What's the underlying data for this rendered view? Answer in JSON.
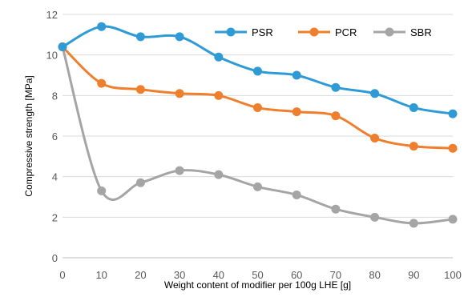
{
  "chart_data": {
    "type": "line",
    "title": "",
    "xlabel": "Weight content of modifier per 100g LHE [g]",
    "ylabel": "Compressive strength [MPa]",
    "xlim": [
      0,
      100
    ],
    "ylim": [
      0,
      12
    ],
    "x": [
      0,
      10,
      20,
      30,
      40,
      50,
      60,
      70,
      80,
      90,
      100
    ],
    "x_ticks": [
      "0",
      "10",
      "20",
      "30",
      "40",
      "50",
      "60",
      "70",
      "80",
      "90",
      "100"
    ],
    "y_ticks": [
      "0",
      "2",
      "4",
      "6",
      "8",
      "10",
      "12"
    ],
    "grid": "horizontal",
    "legend_position": "top-right",
    "smooth": true,
    "series": [
      {
        "name": "PSR",
        "color": "#2E9BD6",
        "values": [
          10.4,
          11.4,
          10.9,
          10.9,
          9.9,
          9.2,
          9.0,
          8.4,
          8.1,
          7.4,
          7.1
        ]
      },
      {
        "name": "PCR",
        "color": "#F07F2D",
        "values": [
          10.4,
          8.6,
          8.3,
          8.1,
          8.0,
          7.4,
          7.2,
          7.0,
          5.9,
          5.5,
          5.4
        ]
      },
      {
        "name": "SBR",
        "color": "#A5A5A5",
        "values": [
          10.4,
          3.3,
          3.7,
          4.3,
          4.1,
          3.5,
          3.1,
          2.4,
          2.0,
          1.7,
          1.9
        ]
      }
    ]
  }
}
